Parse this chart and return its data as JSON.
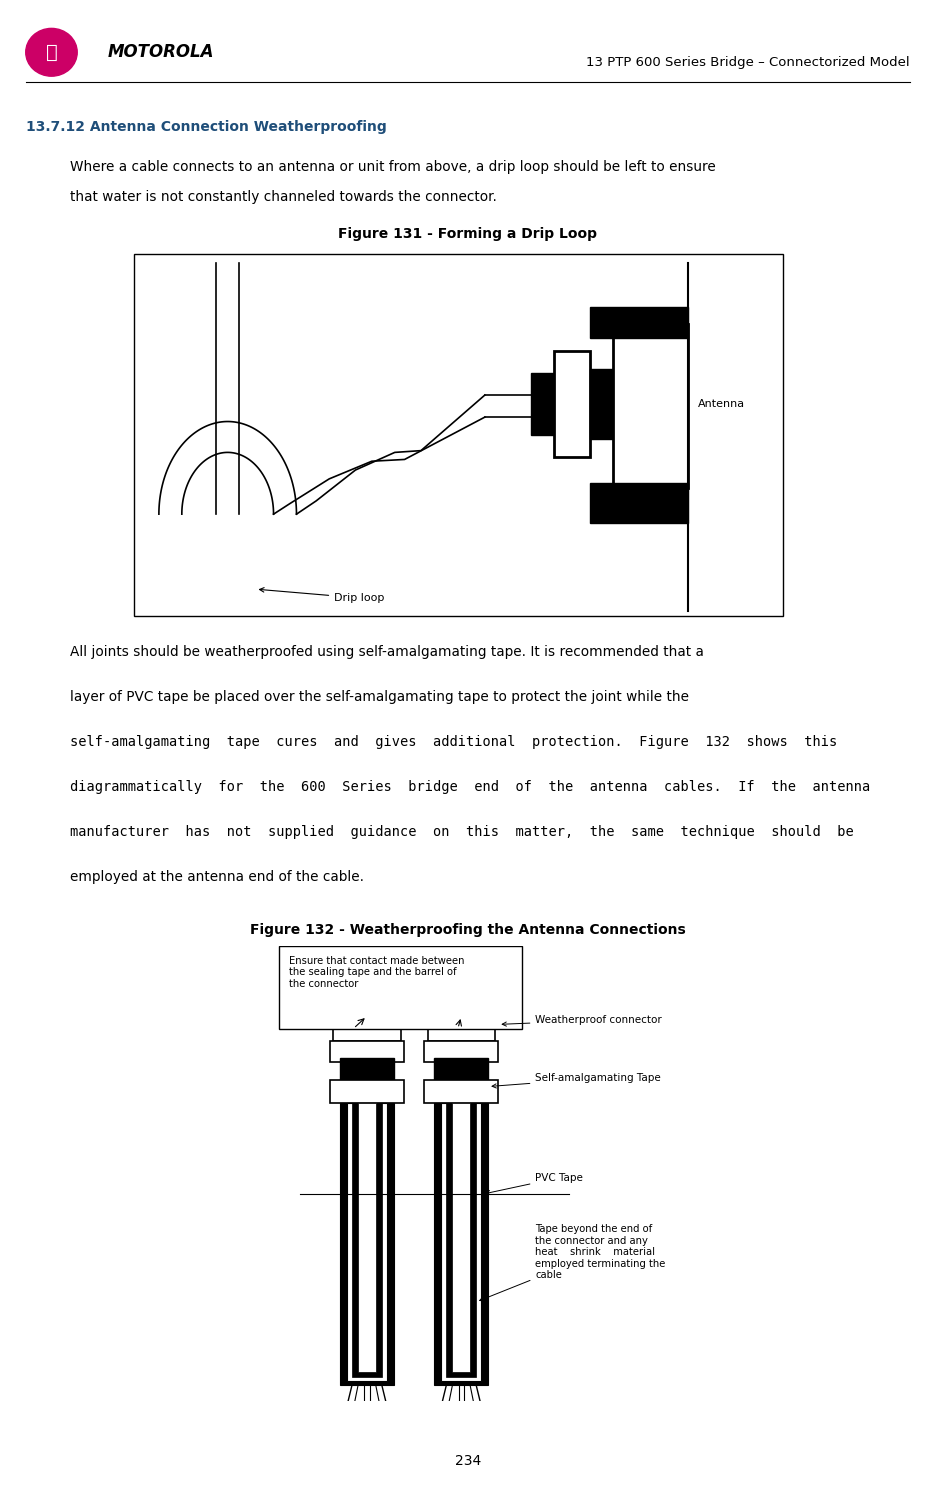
{
  "page_width": 9.36,
  "page_height": 14.94,
  "dpi": 100,
  "bg_color": "#ffffff",
  "header_text": "13 PTP 600 Series Bridge – Connectorized Model",
  "section_title": "13.7.12 Antenna Connection Weatherproofing",
  "section_title_color": "#1f4e79",
  "body_text1_line1": "Where a cable connects to an antenna or unit from above, a drip loop should be left to ensure",
  "body_text1_line2": "that water is not constantly channeled towards the connector.",
  "fig131_title": "Figure 131 - Forming a Drip Loop",
  "body_text2_lines": [
    "All joints should be weatherproofed using self-amalgamating tape. It is recommended that a",
    "layer of PVC tape be placed over the self-amalgamating tape to protect the joint while the",
    "self-amalgamating  tape  cures  and  gives  additional  protection.  Figure  132  shows  this",
    "diagrammatically  for  the  600  Series  bridge  end  of  the  antenna  cables.  If  the  antenna",
    "manufacturer  has  not  supplied  guidance  on  this  matter,  the  same  technique  should  be",
    "employed at the antenna end of the cable."
  ],
  "fig132_title": "Figure 132 - Weatherproofing the Antenna Connections",
  "page_number": "234",
  "motorola_text": "MOTOROLA",
  "logo_color": "#cc0066",
  "separator_color": "#000000"
}
